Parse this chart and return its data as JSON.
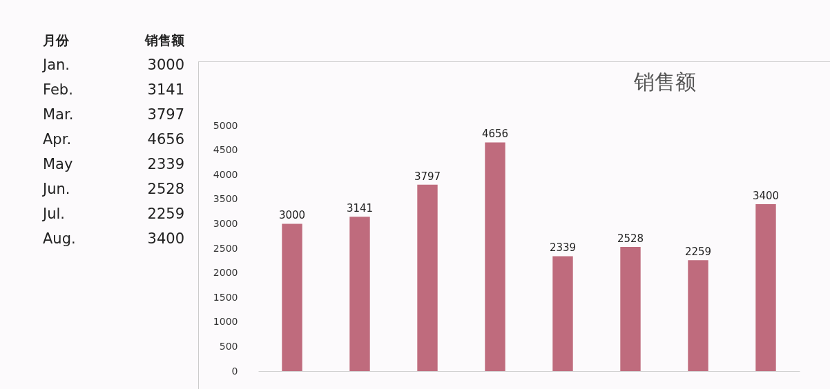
{
  "chart_data": [
    {
      "type": "other",
      "annotations": [
        "月份",
        "销售额"
      ],
      "categories": [
        "Jan.",
        "Feb.",
        "Mar.",
        "Apr.",
        "May",
        "Jun.",
        "Jul.",
        "Aug."
      ],
      "values": [
        3000,
        3141,
        3797,
        4656,
        2339,
        2528,
        2259,
        3400
      ],
      "data_labels": true
    },
    {
      "type": "bar",
      "title": "销售额",
      "categories": [
        null,
        null,
        null,
        null,
        null,
        null,
        null,
        null
      ],
      "values": [
        3000,
        3141,
        3797,
        4656,
        2339,
        2528,
        2259,
        3400
      ],
      "color": "#bf6b7d",
      "data_labels": true,
      "tick_labels": "y",
      "ylim": [
        0,
        5000
      ],
      "yticks": [
        0,
        500,
        1000,
        1500,
        2000,
        2500,
        3000,
        3500,
        4000,
        4500,
        5000
      ]
    }
  ]
}
